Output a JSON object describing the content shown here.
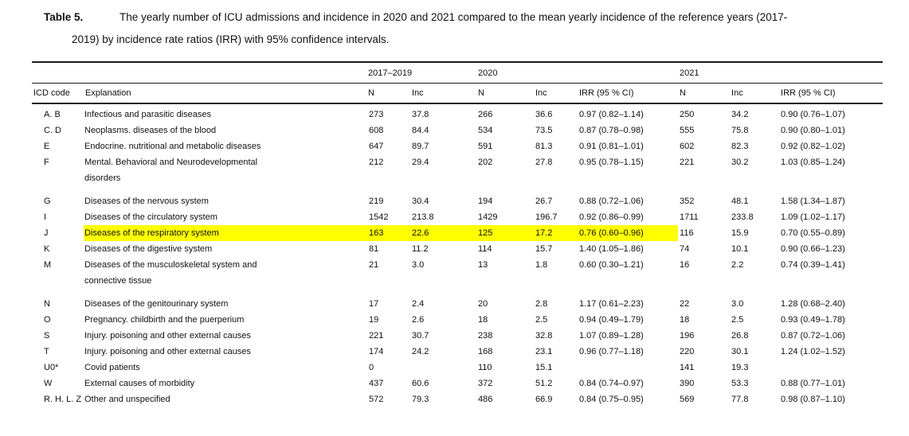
{
  "caption": {
    "label": "Table 5.",
    "line1": "The yearly number of ICU admissions and incidence in 2020 and 2021 compared to the mean yearly incidence of the reference years (2017-",
    "line2": "2019) by incidence rate ratios (IRR) with 95% confidence intervals."
  },
  "table": {
    "year_groups": [
      "2017–2019",
      "2020",
      "2021"
    ],
    "columns": {
      "icd": "ICD code",
      "explanation": "Explanation",
      "n": "N",
      "inc": "Inc",
      "irr": "IRR (95 % CI)"
    },
    "highlight_color": "#ffff00",
    "rows": [
      {
        "icd": "A. B",
        "explanation": "Infectious and parasitic diseases",
        "n1": "273",
        "inc1": "37.8",
        "n2": "266",
        "inc2": "36.6",
        "irr1": "0.97 (0.82–1.14)",
        "n3": "250",
        "inc3": "34.2",
        "irr2": "0.90 (0.76–1.07)",
        "highlighted": false
      },
      {
        "icd": "C. D",
        "explanation": "Neoplasms. diseases of the blood",
        "n1": "608",
        "inc1": "84.4",
        "n2": "534",
        "inc2": "73.5",
        "irr1": "0.87 (0.78–0.98)",
        "n3": "555",
        "inc3": "75.8",
        "irr2": "0.90 (0.80–1.01)",
        "highlighted": false
      },
      {
        "icd": "E",
        "explanation": "Endocrine. nutritional and metabolic diseases",
        "n1": "647",
        "inc1": "89.7",
        "n2": "591",
        "inc2": "81.3",
        "irr1": "0.91 (0.81–1.01)",
        "n3": "602",
        "inc3": "82.3",
        "irr2": "0.92 (0.82–1.02)",
        "highlighted": false
      },
      {
        "icd": "F",
        "explanation": "Mental. Behavioral and Neurodevelopmental\ndisorders",
        "n1": "212",
        "inc1": "29.4",
        "n2": "202",
        "inc2": "27.8",
        "irr1": "0.95 (0.78–1.15)",
        "n3": "221",
        "inc3": "30.2",
        "irr2": "1.03 (0.85–1.24)",
        "highlighted": false,
        "gap_after": true
      },
      {
        "icd": "G",
        "explanation": "Diseases of the nervous system",
        "n1": "219",
        "inc1": "30.4",
        "n2": "194",
        "inc2": "26.7",
        "irr1": "0.88 (0.72–1.06)",
        "n3": "352",
        "inc3": "48.1",
        "irr2": "1.58 (1.34–1.87)",
        "highlighted": false
      },
      {
        "icd": "I",
        "explanation": "Diseases of the circulatory system",
        "n1": "1542",
        "inc1": "213.8",
        "n2": "1429",
        "inc2": "196.7",
        "irr1": "0.92 (0.86–0.99)",
        "n3": "1711",
        "inc3": "233.8",
        "irr2": "1.09 (1.02–1.17)",
        "highlighted": false
      },
      {
        "icd": "J",
        "explanation": "Diseases of the respiratory system",
        "n1": "163",
        "inc1": "22.6",
        "n2": "125",
        "inc2": "17.2",
        "irr1": "0.76 (0.60–0.96)",
        "n3": "116",
        "inc3": "15.9",
        "irr2": "0.70 (0.55–0.89)",
        "highlighted": true
      },
      {
        "icd": "K",
        "explanation": "Diseases of the digestive system",
        "n1": "81",
        "inc1": "11.2",
        "n2": "114",
        "inc2": "15.7",
        "irr1": "1.40 (1.05–1.86)",
        "n3": "74",
        "inc3": "10.1",
        "irr2": "0.90 (0.66–1.23)",
        "highlighted": false
      },
      {
        "icd": "M",
        "explanation": "Diseases of the musculoskeletal system and\nconnective tissue",
        "n1": "21",
        "inc1": "3.0",
        "n2": "13",
        "inc2": "1.8",
        "irr1": "0.60 (0.30–1.21)",
        "n3": "16",
        "inc3": "2.2",
        "irr2": "0.74 (0.39–1.41)",
        "highlighted": false,
        "gap_after": true
      },
      {
        "icd": "N",
        "explanation": "Diseases of the genitourinary system",
        "n1": "17",
        "inc1": "2.4",
        "n2": "20",
        "inc2": "2.8",
        "irr1": "1.17 (0.61–2.23)",
        "n3": "22",
        "inc3": "3.0",
        "irr2": "1.28 (0.68–2.40)",
        "highlighted": false
      },
      {
        "icd": "O",
        "explanation": "Pregnancy. childbirth and the puerperium",
        "n1": "19",
        "inc1": "2.6",
        "n2": "18",
        "inc2": "2.5",
        "irr1": "0.94 (0.49–1.79)",
        "n3": "18",
        "inc3": "2.5",
        "irr2": "0.93 (0.49–1.78)",
        "highlighted": false
      },
      {
        "icd": "S",
        "explanation": "Injury. poisoning and other external causes",
        "n1": "221",
        "inc1": "30.7",
        "n2": "238",
        "inc2": "32.8",
        "irr1": "1.07 (0.89–1.28)",
        "n3": "196",
        "inc3": "26.8",
        "irr2": "0.87 (0.72–1.06)",
        "highlighted": false
      },
      {
        "icd": "T",
        "explanation": "Injury. poisoning and other external causes",
        "n1": "174",
        "inc1": "24.2",
        "n2": "168",
        "inc2": "23.1",
        "irr1": "0.96 (0.77–1.18)",
        "n3": "220",
        "inc3": "30.1",
        "irr2": "1.24 (1.02–1.52)",
        "highlighted": false
      },
      {
        "icd": "U0*",
        "explanation": "Covid patients",
        "n1": "0",
        "inc1": "",
        "n2": "110",
        "inc2": "15.1",
        "irr1": "",
        "n3": "141",
        "inc3": "19.3",
        "irr2": "",
        "highlighted": false
      },
      {
        "icd": "W",
        "explanation": "External causes of morbidity",
        "n1": "437",
        "inc1": "60.6",
        "n2": "372",
        "inc2": "51.2",
        "irr1": "0.84 (0.74–0.97)",
        "n3": "390",
        "inc3": "53.3",
        "irr2": "0.88 (0.77–1.01)",
        "highlighted": false
      },
      {
        "icd": "R. H. L. Z",
        "explanation": "Other and unspecified",
        "n1": "572",
        "inc1": "79.3",
        "n2": "486",
        "inc2": "66.9",
        "irr1": "0.84 (0.75–0.95)",
        "n3": "569",
        "inc3": "77.8",
        "irr2": "0.98 (0.87–1.10)",
        "highlighted": false
      }
    ]
  }
}
